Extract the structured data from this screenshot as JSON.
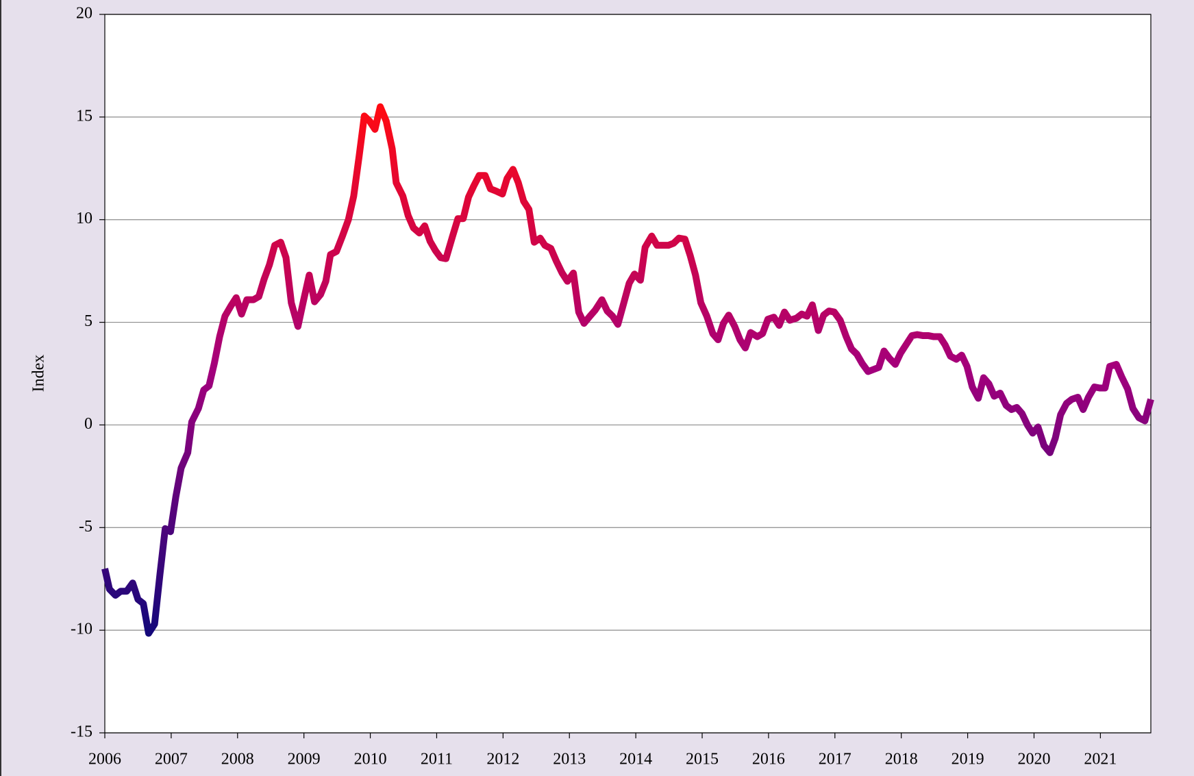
{
  "chart_data": {
    "type": "line",
    "y_label": "Index",
    "x": [
      2006.0,
      2006.07,
      2006.16,
      2006.24,
      2006.33,
      2006.42,
      2006.5,
      2006.58,
      2006.66,
      2006.75,
      2006.83,
      2006.91,
      2006.99,
      2007.07,
      2007.15,
      2007.25,
      2007.31,
      2007.41,
      2007.49,
      2007.57,
      2007.65,
      2007.73,
      2007.81,
      2007.9,
      2007.98,
      2008.06,
      2008.14,
      2008.24,
      2008.32,
      2008.4,
      2008.48,
      2008.56,
      2008.65,
      2008.73,
      2008.81,
      2008.91,
      2008.99,
      2009.08,
      2009.16,
      2009.25,
      2009.33,
      2009.4,
      2009.49,
      2009.58,
      2009.67,
      2009.75,
      2009.83,
      2009.91,
      2009.99,
      2010.07,
      2010.15,
      2010.24,
      2010.33,
      2010.39,
      2010.49,
      2010.57,
      2010.65,
      2010.74,
      2010.82,
      2010.9,
      2010.98,
      2011.06,
      2011.14,
      2011.24,
      2011.32,
      2011.4,
      2011.48,
      2011.56,
      2011.64,
      2011.73,
      2011.81,
      2011.89,
      2011.99,
      2012.06,
      2012.15,
      2012.23,
      2012.31,
      2012.39,
      2012.47,
      2012.56,
      2012.63,
      2012.72,
      2012.8,
      2012.89,
      2012.97,
      2013.06,
      2013.14,
      2013.22,
      2013.31,
      2013.39,
      2013.49,
      2013.57,
      2013.65,
      2013.73,
      2013.82,
      2013.9,
      2013.98,
      2014.07,
      2014.14,
      2014.24,
      2014.32,
      2014.41,
      2014.49,
      2014.57,
      2014.65,
      2014.74,
      2014.82,
      2014.9,
      2014.98,
      2015.07,
      2015.16,
      2015.24,
      2015.32,
      2015.4,
      2015.49,
      2015.57,
      2015.65,
      2015.73,
      2015.83,
      2015.91,
      2015.99,
      2016.08,
      2016.16,
      2016.24,
      2016.32,
      2016.42,
      2016.5,
      2016.58,
      2016.66,
      2016.75,
      2016.83,
      2016.91,
      2016.99,
      2017.08,
      2017.17,
      2017.25,
      2017.33,
      2017.41,
      2017.5,
      2017.58,
      2017.66,
      2017.74,
      2017.82,
      2017.91,
      2017.99,
      2018.08,
      2018.16,
      2018.24,
      2018.33,
      2018.41,
      2018.49,
      2018.58,
      2018.66,
      2018.74,
      2018.83,
      2018.91,
      2018.99,
      2019.07,
      2019.16,
      2019.24,
      2019.32,
      2019.4,
      2019.49,
      2019.58,
      2019.66,
      2019.74,
      2019.82,
      2019.9,
      2019.98,
      2020.06,
      2020.15,
      2020.24,
      2020.32,
      2020.4,
      2020.49,
      2020.57,
      2020.66,
      2020.74,
      2020.82,
      2020.91,
      2020.99,
      2021.07,
      2021.14,
      2021.24,
      2021.32,
      2021.41,
      2021.49,
      2021.58,
      2021.67,
      2021.76
    ],
    "series": [
      {
        "colors": [
          "#14087a",
          "#a3007c",
          "#ff0a12"
        ],
        "values": [
          -7.0,
          -8.0,
          -8.3,
          -8.1,
          -8.1,
          -7.7,
          -8.5,
          -8.7,
          -10.15,
          -9.7,
          -7.3,
          -5.05,
          -5.2,
          -3.5,
          -2.1,
          -1.35,
          0.15,
          0.8,
          1.7,
          1.9,
          3.0,
          4.3,
          5.3,
          5.8,
          6.2,
          5.4,
          6.1,
          6.1,
          6.25,
          7.1,
          7.8,
          8.75,
          8.9,
          8.15,
          5.95,
          4.8,
          6.0,
          7.3,
          6.0,
          6.35,
          7.0,
          8.3,
          8.45,
          9.2,
          10.0,
          11.15,
          13.05,
          15.05,
          14.8,
          14.4,
          15.5,
          14.8,
          13.45,
          11.8,
          11.15,
          10.2,
          9.6,
          9.35,
          9.7,
          8.95,
          8.5,
          8.15,
          8.1,
          9.2,
          10.05,
          10.05,
          11.1,
          11.65,
          12.15,
          12.15,
          11.5,
          11.4,
          11.25,
          12.0,
          12.45,
          11.8,
          10.9,
          10.5,
          8.9,
          9.1,
          8.75,
          8.6,
          8.0,
          7.4,
          7.0,
          7.4,
          5.5,
          4.95,
          5.3,
          5.6,
          6.1,
          5.55,
          5.3,
          4.9,
          5.95,
          6.9,
          7.35,
          7.05,
          8.65,
          9.2,
          8.75,
          8.75,
          8.75,
          8.85,
          9.1,
          9.05,
          8.25,
          7.3,
          5.95,
          5.3,
          4.45,
          4.15,
          4.95,
          5.35,
          4.8,
          4.15,
          3.75,
          4.5,
          4.3,
          4.45,
          5.15,
          5.25,
          4.85,
          5.5,
          5.1,
          5.2,
          5.4,
          5.3,
          5.85,
          4.6,
          5.35,
          5.55,
          5.5,
          5.1,
          4.3,
          3.7,
          3.45,
          3.0,
          2.6,
          2.7,
          2.8,
          3.6,
          3.25,
          2.95,
          3.5,
          3.95,
          4.35,
          4.4,
          4.35,
          4.35,
          4.3,
          4.3,
          3.9,
          3.35,
          3.2,
          3.4,
          2.85,
          1.85,
          1.3,
          2.3,
          2.0,
          1.4,
          1.55,
          0.95,
          0.75,
          0.85,
          0.55,
          0.0,
          -0.4,
          -0.1,
          -1.0,
          -1.35,
          -0.65,
          0.5,
          1.05,
          1.25,
          1.35,
          0.75,
          1.35,
          1.85,
          1.8,
          1.8,
          2.85,
          2.95,
          2.35,
          1.75,
          0.8,
          0.35,
          0.2,
          1.25
        ]
      }
    ],
    "xlim": [
      2006,
      2021.76
    ],
    "xticks": [
      2006,
      2007,
      2008,
      2009,
      2010,
      2011,
      2012,
      2013,
      2014,
      2015,
      2016,
      2017,
      2018,
      2019,
      2020,
      2021
    ],
    "ylim": [
      -15,
      20
    ],
    "yticks": [
      -15,
      -10,
      -5,
      0,
      5,
      10,
      15,
      20
    ],
    "grid": true
  }
}
